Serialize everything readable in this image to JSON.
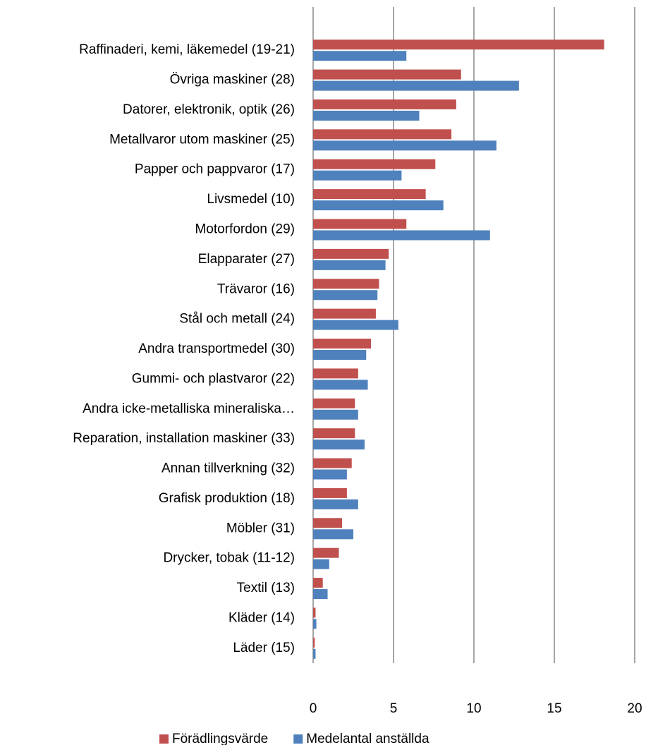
{
  "chart_data": {
    "type": "barh",
    "categories": [
      "Raffinaderi, kemi, läkemedel (19-21)",
      "Övriga maskiner (28)",
      "Datorer, elektronik, optik (26)",
      "Metallvaror utom maskiner (25)",
      "Papper och pappvaror (17)",
      "Livsmedel (10)",
      "Motorfordon (29)",
      "Elapparater (27)",
      "Trävaror (16)",
      "Stål och metall (24)",
      "Andra transportmedel (30)",
      "Gummi- och plastvaror (22)",
      "Andra icke-metalliska mineraliska…",
      "Reparation, installation maskiner (33)",
      "Annan tillverkning (32)",
      "Grafisk produktion (18)",
      "Möbler (31)",
      "Drycker, tobak (11-12)",
      "Textil (13)",
      "Kläder (14)",
      "Läder (15)"
    ],
    "series": [
      {
        "name": "Förädlingsvärde",
        "color": "#c0504d",
        "values": [
          18.1,
          9.2,
          8.9,
          8.6,
          7.6,
          7.0,
          5.8,
          4.7,
          4.1,
          3.9,
          3.6,
          2.8,
          2.6,
          2.6,
          2.4,
          2.1,
          1.8,
          1.6,
          0.6,
          0.15,
          0.1
        ]
      },
      {
        "name": "Medelantal anställda",
        "color": "#4f81bd",
        "values": [
          5.8,
          12.8,
          6.6,
          11.4,
          5.5,
          8.1,
          11.0,
          4.5,
          4.0,
          5.3,
          3.3,
          3.4,
          2.8,
          3.2,
          2.1,
          2.8,
          2.5,
          1.0,
          0.9,
          0.2,
          0.15
        ]
      }
    ],
    "xlim": [
      0,
      20
    ],
    "xticks": [
      0,
      5,
      10,
      15,
      20
    ],
    "grid": true,
    "legend": "bottom"
  }
}
